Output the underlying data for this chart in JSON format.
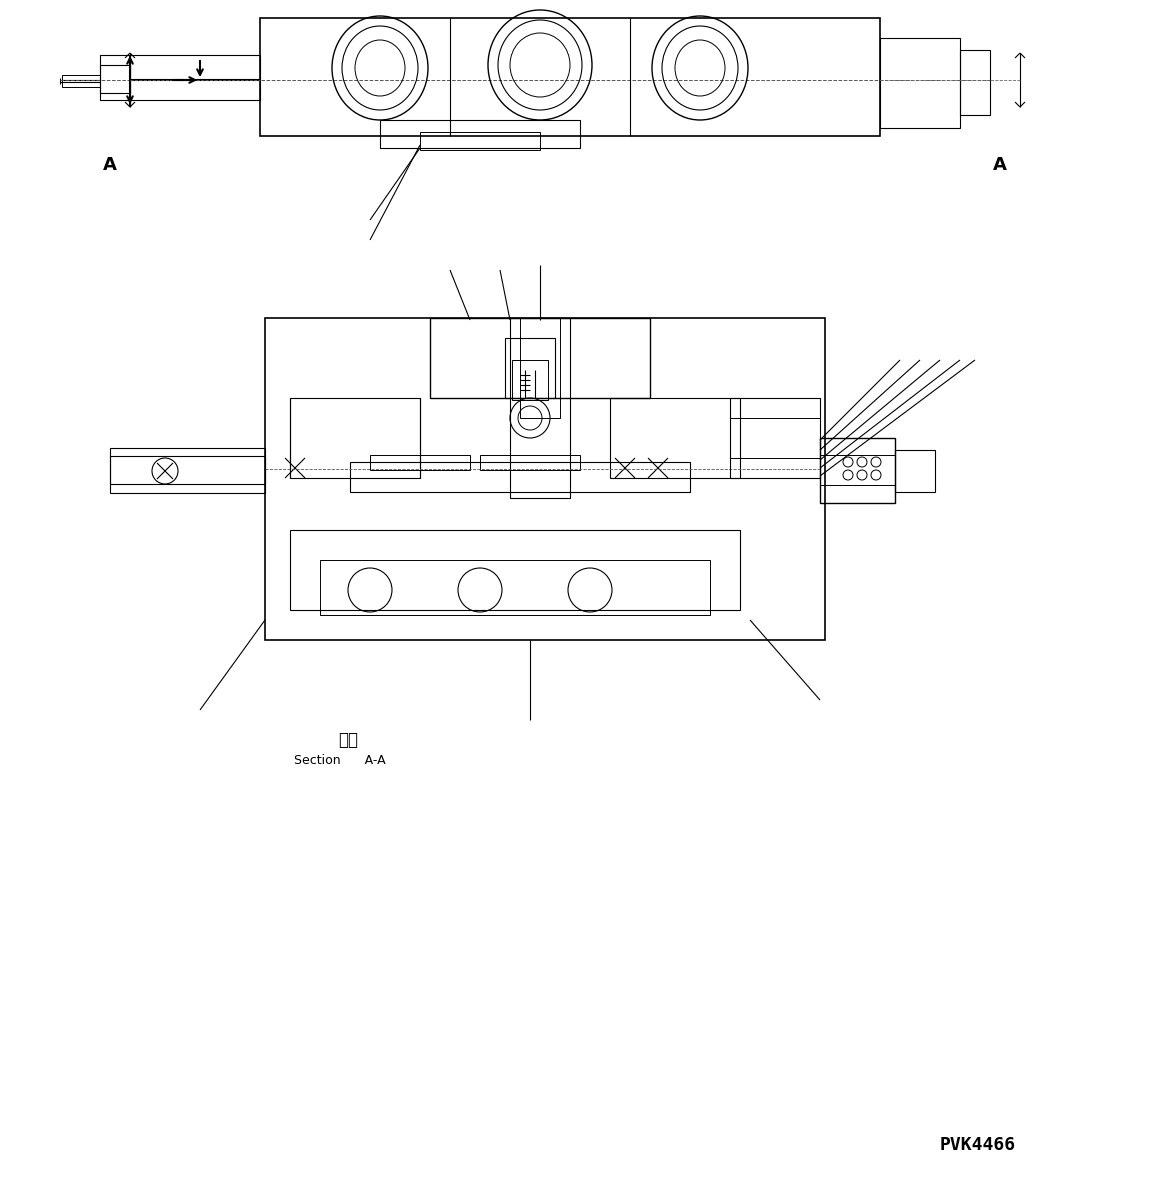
{
  "bg_color": "#ffffff",
  "line_color": "#000000",
  "fig_width": 11.68,
  "fig_height": 11.79,
  "dpi": 100,
  "section_label_japanese": "断面",
  "section_label_english": "Section      A-A",
  "drawing_number": "PVK4466",
  "arrow_A_label": "A"
}
